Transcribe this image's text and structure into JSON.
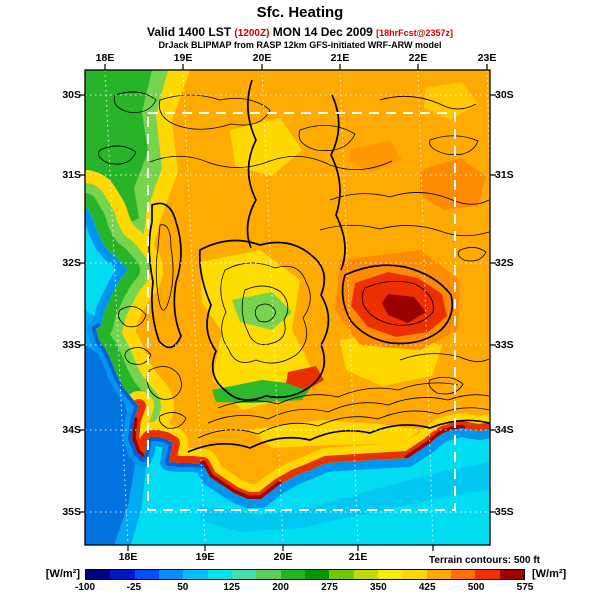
{
  "header": {
    "title": "Sfc. Heating",
    "valid_prefix": "Valid 1400 LST ",
    "valid_zulu": "(1200Z)",
    "valid_date": " MON 14 Dec 2009 ",
    "valid_fcst": "[18hrFcst@2357z]",
    "model_line": "DrJack BLIPMAP from RASP 12km GFS-initiated WRF-ARW model"
  },
  "axes": {
    "top": [
      "18E",
      "19E",
      "20E",
      "21E",
      "22E",
      "23E"
    ],
    "bottom": [
      "18E",
      "19E",
      "20E",
      "21E"
    ],
    "left": [
      "30S",
      "31S",
      "32S",
      "33S",
      "34S",
      "35S"
    ],
    "right": [
      "30S",
      "31S",
      "32S",
      "33S",
      "34S",
      "35S"
    ]
  },
  "map": {
    "terrain_note": "Terrain contours: 500 ft"
  },
  "colorbar": {
    "unit_left": "[W/m²]",
    "unit_right": "[W/m²]",
    "ticks": [
      "-100",
      "-25",
      "50",
      "125",
      "200",
      "275",
      "350",
      "425",
      "500",
      "575"
    ],
    "segments": [
      "#000082",
      "#0018c8",
      "#0050fa",
      "#0090ff",
      "#00c0ff",
      "#00e4f0",
      "#40e0b0",
      "#58d058",
      "#20b820",
      "#009600",
      "#70c800",
      "#c0dc00",
      "#f8f000",
      "#ffd800",
      "#ffa800",
      "#ff7000",
      "#f03000",
      "#a00000"
    ]
  },
  "palette": {
    "ocean": "#00dcf2",
    "ocean_deep": "#0073e0",
    "land_base": "#ffaa00",
    "coastal_green": "#28b428",
    "hot_red": "#ee3000",
    "very_hot": "#990000",
    "accent_red_text": "#cc0000"
  },
  "chart_data": {
    "type": "heatmap",
    "title": "Sfc. Heating",
    "units": "W/m^2",
    "valid": "1400 LST (1200Z) MON 14 Dec 2009",
    "forecast_lead": "18hrFcst@2357z",
    "model": "DrJack BLIPMAP from RASP 12km GFS-initiated WRF-ARW model",
    "colorbar_ticks": [
      -100,
      -25,
      50,
      125,
      200,
      275,
      350,
      425,
      500,
      575
    ],
    "colorbar_range": [
      -100,
      575
    ],
    "lon_ticks_e": [
      18,
      19,
      20,
      21,
      22,
      23
    ],
    "lat_ticks_s": [
      30,
      31,
      32,
      33,
      34,
      35
    ],
    "terrain_contour_interval_ft": 500,
    "legend_position": "bottom",
    "grid": true,
    "regions": [
      {
        "area": "Atlantic ocean west offshore",
        "approx_value_wm2": -25
      },
      {
        "area": "open ocean (cyan)",
        "approx_value_wm2": 50
      },
      {
        "area": "west coast green strip",
        "approx_value_wm2": 175
      },
      {
        "area": "interior plateau (orange)",
        "approx_value_wm2": 400
      },
      {
        "area": "central mountain belt (yellow/green mix)",
        "approx_value_wm2": 275
      },
      {
        "area": "south coastal strip (red)",
        "approx_value_wm2": 525
      },
      {
        "area": "karoo basin hot spot (dark red core)",
        "approx_value_wm2": 560
      }
    ]
  }
}
